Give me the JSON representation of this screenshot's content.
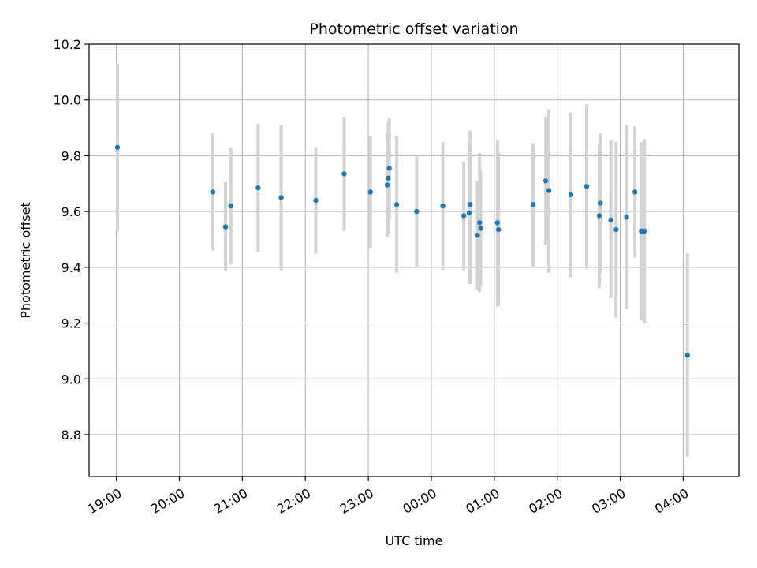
{
  "chart_data": {
    "type": "scatter",
    "title": "Photometric offset variation",
    "xlabel": "UTC time",
    "ylabel": "Photometric offset",
    "grid": true,
    "x_type": "time-of-night",
    "xlim": [
      "18:34",
      "04:53"
    ],
    "ylim": [
      8.65,
      10.2
    ],
    "x_ticks": [
      "19:00",
      "20:00",
      "21:00",
      "22:00",
      "23:00",
      "00:00",
      "01:00",
      "02:00",
      "03:00",
      "04:00"
    ],
    "y_ticks": [
      "8.8",
      "9.0",
      "9.2",
      "9.4",
      "9.6",
      "9.8",
      "10.0",
      "10.2"
    ],
    "marker_color": "#1f77b4",
    "errorbar_color": "#d3d3d3",
    "points": [
      {
        "x": "19:01",
        "y": 9.83,
        "ylow": 9.53,
        "yhigh": 10.13
      },
      {
        "x": "20:32",
        "y": 9.67,
        "ylow": 9.46,
        "yhigh": 9.88
      },
      {
        "x": "20:44",
        "y": 9.545,
        "ylow": 9.385,
        "yhigh": 9.705
      },
      {
        "x": "20:49",
        "y": 9.62,
        "ylow": 9.41,
        "yhigh": 9.83
      },
      {
        "x": "21:15",
        "y": 9.685,
        "ylow": 9.455,
        "yhigh": 9.915
      },
      {
        "x": "21:37",
        "y": 9.65,
        "ylow": 9.39,
        "yhigh": 9.91
      },
      {
        "x": "22:10",
        "y": 9.64,
        "ylow": 9.45,
        "yhigh": 9.83
      },
      {
        "x": "22:37",
        "y": 9.735,
        "ylow": 9.53,
        "yhigh": 9.94
      },
      {
        "x": "23:02",
        "y": 9.67,
        "ylow": 9.47,
        "yhigh": 9.87
      },
      {
        "x": "23:18",
        "y": 9.695,
        "ylow": 9.51,
        "yhigh": 9.88
      },
      {
        "x": "23:19",
        "y": 9.72,
        "ylow": 9.52,
        "yhigh": 9.92
      },
      {
        "x": "23:20",
        "y": 9.755,
        "ylow": 9.57,
        "yhigh": 9.935
      },
      {
        "x": "23:27",
        "y": 9.625,
        "ylow": 9.38,
        "yhigh": 9.87
      },
      {
        "x": "23:46",
        "y": 9.6,
        "ylow": 9.4,
        "yhigh": 9.8
      },
      {
        "x": "00:11",
        "y": 9.62,
        "ylow": 9.39,
        "yhigh": 9.85
      },
      {
        "x": "00:31",
        "y": 9.585,
        "ylow": 9.39,
        "yhigh": 9.78
      },
      {
        "x": "00:36",
        "y": 9.595,
        "ylow": 9.34,
        "yhigh": 9.85
      },
      {
        "x": "00:37",
        "y": 9.625,
        "ylow": 9.34,
        "yhigh": 9.89
      },
      {
        "x": "00:44",
        "y": 9.515,
        "ylow": 9.32,
        "yhigh": 9.71
      },
      {
        "x": "00:46",
        "y": 9.56,
        "ylow": 9.31,
        "yhigh": 9.81
      },
      {
        "x": "00:47",
        "y": 9.54,
        "ylow": 9.335,
        "yhigh": 9.745
      },
      {
        "x": "01:03",
        "y": 9.56,
        "ylow": 9.26,
        "yhigh": 9.855
      },
      {
        "x": "01:04",
        "y": 9.535,
        "ylow": 9.26,
        "yhigh": 9.81
      },
      {
        "x": "01:37",
        "y": 9.625,
        "ylow": 9.4,
        "yhigh": 9.845
      },
      {
        "x": "01:49",
        "y": 9.71,
        "ylow": 9.48,
        "yhigh": 9.94
      },
      {
        "x": "01:52",
        "y": 9.675,
        "ylow": 9.38,
        "yhigh": 9.965
      },
      {
        "x": "02:13",
        "y": 9.66,
        "ylow": 9.365,
        "yhigh": 9.955
      },
      {
        "x": "02:28",
        "y": 9.69,
        "ylow": 9.395,
        "yhigh": 9.985
      },
      {
        "x": "02:40",
        "y": 9.585,
        "ylow": 9.325,
        "yhigh": 9.845
      },
      {
        "x": "02:41",
        "y": 9.63,
        "ylow": 9.38,
        "yhigh": 9.88
      },
      {
        "x": "02:51",
        "y": 9.57,
        "ylow": 9.29,
        "yhigh": 9.855
      },
      {
        "x": "02:56",
        "y": 9.535,
        "ylow": 9.22,
        "yhigh": 9.85
      },
      {
        "x": "03:06",
        "y": 9.58,
        "ylow": 9.25,
        "yhigh": 9.91
      },
      {
        "x": "03:14",
        "y": 9.67,
        "ylow": 9.435,
        "yhigh": 9.905
      },
      {
        "x": "03:20",
        "y": 9.53,
        "ylow": 9.21,
        "yhigh": 9.85
      },
      {
        "x": "03:23",
        "y": 9.53,
        "ylow": 9.2,
        "yhigh": 9.86
      },
      {
        "x": "04:04",
        "y": 9.085,
        "ylow": 8.72,
        "yhigh": 9.45
      }
    ]
  }
}
